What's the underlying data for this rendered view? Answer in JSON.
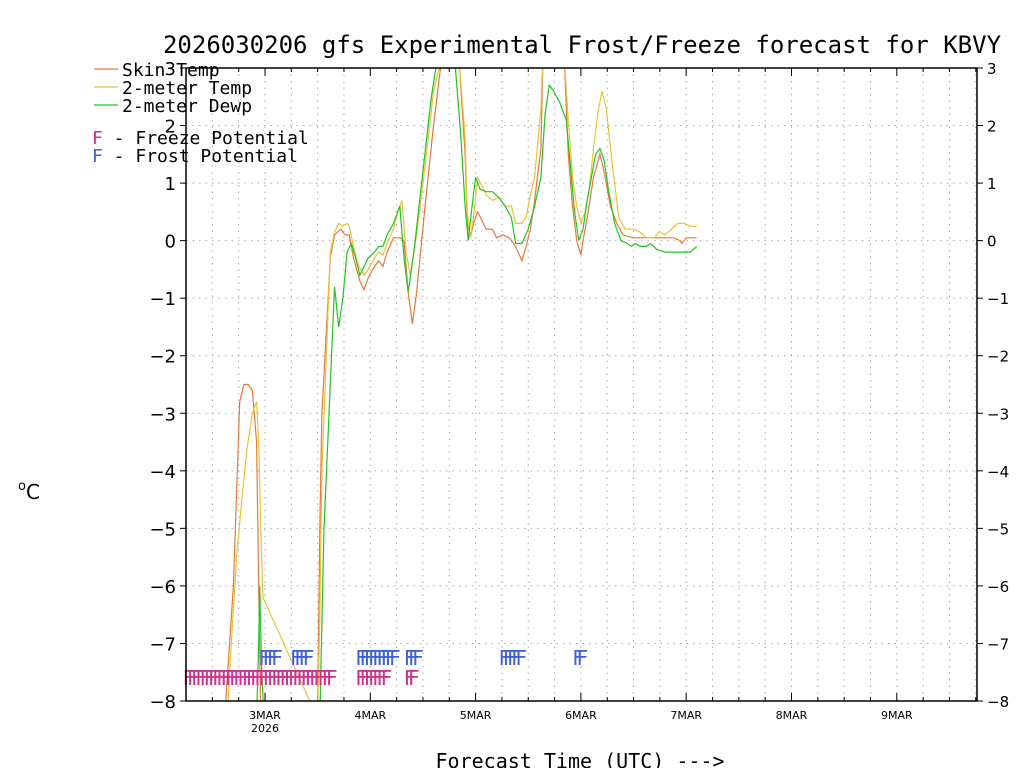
{
  "chart_data": {
    "type": "line",
    "title": "2026030206 gfs Experimental Frost/Freeze forecast for KBVY",
    "xlabel": "Forecast Time (UTC) --->",
    "ylabel_prefix": "o",
    "ylabel_unit": "C",
    "ylim": [
      -8,
      3
    ],
    "xlim": [
      -0.75,
      6.75
    ],
    "yticks": [
      3,
      2,
      1,
      0,
      -1,
      -2,
      -3,
      -4,
      -5,
      -6,
      -7,
      -8
    ],
    "yticks_right": [
      3,
      2,
      1,
      0,
      -1,
      -2,
      -3,
      -4,
      -5,
      -6,
      -7,
      -8
    ],
    "xticks": [
      {
        "day": 0,
        "label": "3MAR",
        "sub": "2026"
      },
      {
        "day": 1,
        "label": "4MAR",
        "sub": ""
      },
      {
        "day": 2,
        "label": "5MAR",
        "sub": ""
      },
      {
        "day": 3,
        "label": "6MAR",
        "sub": ""
      },
      {
        "day": 4,
        "label": "7MAR",
        "sub": ""
      },
      {
        "day": 5,
        "label": "8MAR",
        "sub": ""
      },
      {
        "day": 6,
        "label": "9MAR",
        "sub": ""
      }
    ],
    "grid": true,
    "legend": {
      "position": "top-left",
      "entries": [
        {
          "name": "Skin Temp",
          "color": "#e6793a"
        },
        {
          "name": "2-meter Temp",
          "color": "#e6c43a"
        },
        {
          "name": "2-meter Dewp",
          "color": "#22c322"
        }
      ],
      "flags": [
        {
          "letter": "F",
          "text": " - Freeze Potential",
          "color": "#d0308c"
        },
        {
          "letter": "F",
          "text": " - Frost Potential",
          "color": "#4060d8"
        }
      ]
    },
    "series": [
      {
        "name": "Skin Temp",
        "color": "#e6793a",
        "points": [
          [
            -0.38,
            -8.2
          ],
          [
            -0.3,
            -6
          ],
          [
            -0.24,
            -2.8
          ],
          [
            -0.2,
            -2.5
          ],
          [
            -0.16,
            -2.5
          ],
          [
            -0.12,
            -2.6
          ],
          [
            -0.08,
            -3.5
          ],
          [
            -0.06,
            -6
          ],
          [
            -0.04,
            -8.3
          ],
          [
            0.5,
            -8.3
          ],
          [
            0.52,
            -5
          ],
          [
            0.54,
            -3
          ],
          [
            0.62,
            -0.3
          ],
          [
            0.66,
            0.1
          ],
          [
            0.72,
            0.2
          ],
          [
            0.76,
            0.1
          ],
          [
            0.8,
            0.1
          ],
          [
            0.84,
            -0.3
          ],
          [
            0.9,
            -0.7
          ],
          [
            0.94,
            -0.85
          ],
          [
            0.98,
            -0.65
          ],
          [
            1.04,
            -0.45
          ],
          [
            1.08,
            -0.35
          ],
          [
            1.12,
            -0.45
          ],
          [
            1.16,
            -0.2
          ],
          [
            1.22,
            0.05
          ],
          [
            1.28,
            0.05
          ],
          [
            1.32,
            0
          ],
          [
            1.36,
            -0.9
          ],
          [
            1.4,
            -1.45
          ],
          [
            1.44,
            -0.9
          ],
          [
            1.52,
            0.6
          ],
          [
            1.6,
            2
          ],
          [
            1.68,
            3.2
          ],
          [
            1.84,
            3.2
          ],
          [
            1.9,
            1.5
          ],
          [
            1.92,
            0.3
          ],
          [
            1.95,
            0.05
          ],
          [
            1.98,
            0.3
          ],
          [
            2.02,
            0.5
          ],
          [
            2.06,
            0.35
          ],
          [
            2.1,
            0.2
          ],
          [
            2.16,
            0.2
          ],
          [
            2.2,
            0.05
          ],
          [
            2.26,
            0.1
          ],
          [
            2.32,
            0.05
          ],
          [
            2.38,
            -0.1
          ],
          [
            2.44,
            -0.35
          ],
          [
            2.48,
            -0.1
          ],
          [
            2.52,
            0.2
          ],
          [
            2.56,
            0.7
          ],
          [
            2.62,
            1.6
          ],
          [
            2.64,
            3.2
          ],
          [
            2.84,
            3.2
          ],
          [
            2.88,
            1.5
          ],
          [
            2.92,
            0.6
          ],
          [
            2.96,
            0
          ],
          [
            3.0,
            -0.25
          ],
          [
            3.02,
            0
          ],
          [
            3.06,
            0.4
          ],
          [
            3.12,
            1.1
          ],
          [
            3.18,
            1.5
          ],
          [
            3.22,
            1.2
          ],
          [
            3.28,
            0.6
          ],
          [
            3.34,
            0.3
          ],
          [
            3.4,
            0.1
          ],
          [
            3.5,
            0.05
          ],
          [
            3.6,
            0.05
          ],
          [
            3.7,
            0.05
          ],
          [
            3.8,
            0.05
          ],
          [
            3.88,
            0.05
          ],
          [
            3.94,
            0
          ],
          [
            3.96,
            -0.05
          ],
          [
            4.0,
            0.05
          ],
          [
            4.1,
            0.05
          ]
        ]
      },
      {
        "name": "2-meter Temp",
        "color": "#e6c43a",
        "points": [
          [
            -0.36,
            -8.3
          ],
          [
            -0.32,
            -7
          ],
          [
            -0.27,
            -5.5
          ],
          [
            -0.22,
            -4.5
          ],
          [
            -0.17,
            -3.6
          ],
          [
            -0.12,
            -3
          ],
          [
            -0.08,
            -2.8
          ],
          [
            -0.06,
            -3.5
          ],
          [
            -0.04,
            -5
          ],
          [
            -0.02,
            -6.2
          ],
          [
            0.5,
            -8.3
          ],
          [
            0.52,
            -6.5
          ],
          [
            0.54,
            -4
          ],
          [
            0.62,
            -0.2
          ],
          [
            0.66,
            0.15
          ],
          [
            0.7,
            0.3
          ],
          [
            0.74,
            0.25
          ],
          [
            0.78,
            0.3
          ],
          [
            0.8,
            0.25
          ],
          [
            0.84,
            -0.1
          ],
          [
            0.88,
            -0.4
          ],
          [
            0.94,
            -0.6
          ],
          [
            0.98,
            -0.5
          ],
          [
            1.04,
            -0.3
          ],
          [
            1.08,
            -0.2
          ],
          [
            1.12,
            -0.25
          ],
          [
            1.16,
            -0.05
          ],
          [
            1.22,
            0.2
          ],
          [
            1.26,
            0.5
          ],
          [
            1.3,
            0.7
          ],
          [
            1.34,
            -0.2
          ],
          [
            1.38,
            -0.6
          ],
          [
            1.44,
            0.1
          ],
          [
            1.52,
            1.3
          ],
          [
            1.6,
            2.6
          ],
          [
            1.68,
            3.2
          ],
          [
            1.84,
            3.2
          ],
          [
            1.9,
            1.8
          ],
          [
            1.92,
            0.5
          ],
          [
            1.95,
            0.05
          ],
          [
            1.98,
            0.4
          ],
          [
            2.02,
            1.1
          ],
          [
            2.06,
            0.95
          ],
          [
            2.1,
            0.8
          ],
          [
            2.16,
            0.7
          ],
          [
            2.22,
            0.75
          ],
          [
            2.28,
            0.6
          ],
          [
            2.34,
            0.6
          ],
          [
            2.38,
            0.3
          ],
          [
            2.44,
            0.3
          ],
          [
            2.48,
            0.4
          ],
          [
            2.52,
            0.8
          ],
          [
            2.56,
            1.1
          ],
          [
            2.62,
            2.3
          ],
          [
            2.64,
            3.2
          ],
          [
            2.84,
            3.2
          ],
          [
            2.88,
            2.1
          ],
          [
            2.92,
            1.1
          ],
          [
            2.96,
            0.6
          ],
          [
            3.0,
            0.3
          ],
          [
            3.04,
            0.5
          ],
          [
            3.08,
            0.9
          ],
          [
            3.12,
            1.6
          ],
          [
            3.16,
            2.2
          ],
          [
            3.2,
            2.6
          ],
          [
            3.24,
            2.3
          ],
          [
            3.3,
            1.3
          ],
          [
            3.36,
            0.4
          ],
          [
            3.42,
            0.2
          ],
          [
            3.5,
            0.2
          ],
          [
            3.56,
            0.15
          ],
          [
            3.62,
            0.05
          ],
          [
            3.7,
            0.05
          ],
          [
            3.74,
            0.15
          ],
          [
            3.8,
            0.1
          ],
          [
            3.86,
            0.2
          ],
          [
            3.92,
            0.3
          ],
          [
            3.98,
            0.3
          ],
          [
            4.04,
            0.25
          ],
          [
            4.1,
            0.25
          ]
        ]
      },
      {
        "name": "2-meter Dewp",
        "color": "#22c322",
        "points": [
          [
            -0.08,
            -8.3
          ],
          [
            -0.06,
            -7
          ],
          [
            -0.05,
            -6
          ],
          [
            -0.03,
            -7.5
          ],
          [
            -0.01,
            -8.3
          ],
          [
            0.52,
            -8.3
          ],
          [
            0.56,
            -5
          ],
          [
            0.62,
            -2.5
          ],
          [
            0.66,
            -0.8
          ],
          [
            0.7,
            -1.5
          ],
          [
            0.74,
            -1
          ],
          [
            0.78,
            -0.2
          ],
          [
            0.82,
            -0.05
          ],
          [
            0.86,
            -0.3
          ],
          [
            0.9,
            -0.6
          ],
          [
            0.94,
            -0.45
          ],
          [
            0.98,
            -0.3
          ],
          [
            1.04,
            -0.2
          ],
          [
            1.08,
            -0.1
          ],
          [
            1.12,
            -0.1
          ],
          [
            1.16,
            0.1
          ],
          [
            1.22,
            0.3
          ],
          [
            1.28,
            0.6
          ],
          [
            1.32,
            -0.3
          ],
          [
            1.36,
            -0.9
          ],
          [
            1.42,
            -0.1
          ],
          [
            1.5,
            1.2
          ],
          [
            1.58,
            2.5
          ],
          [
            1.64,
            3.2
          ],
          [
            1.8,
            3.2
          ],
          [
            1.86,
            1.8
          ],
          [
            1.9,
            0.6
          ],
          [
            1.93,
            0
          ],
          [
            1.96,
            0.5
          ],
          [
            2.0,
            1.1
          ],
          [
            2.04,
            0.9
          ],
          [
            2.1,
            0.85
          ],
          [
            2.16,
            0.85
          ],
          [
            2.22,
            0.75
          ],
          [
            2.28,
            0.6
          ],
          [
            2.34,
            0.4
          ],
          [
            2.38,
            -0.05
          ],
          [
            2.44,
            -0.05
          ],
          [
            2.5,
            0.2
          ],
          [
            2.56,
            0.6
          ],
          [
            2.62,
            1.1
          ],
          [
            2.66,
            2.2
          ],
          [
            2.7,
            2.7
          ],
          [
            2.74,
            2.6
          ],
          [
            2.8,
            2.4
          ],
          [
            2.86,
            2.1
          ],
          [
            2.9,
            1.3
          ],
          [
            2.94,
            0.5
          ],
          [
            2.98,
            0
          ],
          [
            3.02,
            0.2
          ],
          [
            3.06,
            0.7
          ],
          [
            3.1,
            1.1
          ],
          [
            3.14,
            1.5
          ],
          [
            3.18,
            1.6
          ],
          [
            3.22,
            1.4
          ],
          [
            3.26,
            0.9
          ],
          [
            3.32,
            0.3
          ],
          [
            3.38,
            0
          ],
          [
            3.44,
            -0.05
          ],
          [
            3.48,
            -0.1
          ],
          [
            3.52,
            -0.05
          ],
          [
            3.56,
            -0.1
          ],
          [
            3.62,
            -0.1
          ],
          [
            3.66,
            -0.05
          ],
          [
            3.72,
            -0.15
          ],
          [
            3.8,
            -0.2
          ],
          [
            3.88,
            -0.2
          ],
          [
            3.96,
            -0.2
          ],
          [
            4.04,
            -0.2
          ],
          [
            4.1,
            -0.1
          ]
        ]
      }
    ],
    "freeze_flags": {
      "color": "#d0308c",
      "letter": "F",
      "y": -7.55,
      "x": [
        -0.78,
        -0.74,
        -0.7,
        -0.66,
        -0.62,
        -0.58,
        -0.54,
        -0.5,
        -0.46,
        -0.42,
        -0.38,
        -0.34,
        -0.3,
        -0.26,
        -0.22,
        -0.18,
        -0.14,
        -0.1,
        -0.06,
        -0.02,
        0.02,
        0.06,
        0.1,
        0.14,
        0.18,
        0.22,
        0.26,
        0.3,
        0.34,
        0.38,
        0.42,
        0.46,
        0.5,
        0.54,
        0.58,
        0.86,
        0.9,
        0.94,
        0.98,
        1.02,
        1.06,
        1.1,
        1.32,
        1.36
      ]
    },
    "frost_flags": {
      "color": "#4060d8",
      "letter": "F",
      "y": -7.2,
      "x": [
        -0.06,
        -0.02,
        0.02,
        0.06,
        0.24,
        0.28,
        0.32,
        0.36,
        0.86,
        0.9,
        0.94,
        0.98,
        1.02,
        1.06,
        1.1,
        1.14,
        1.18,
        1.32,
        1.36,
        1.4,
        2.22,
        2.26,
        2.3,
        2.34,
        2.38,
        2.92,
        2.96
      ]
    }
  }
}
